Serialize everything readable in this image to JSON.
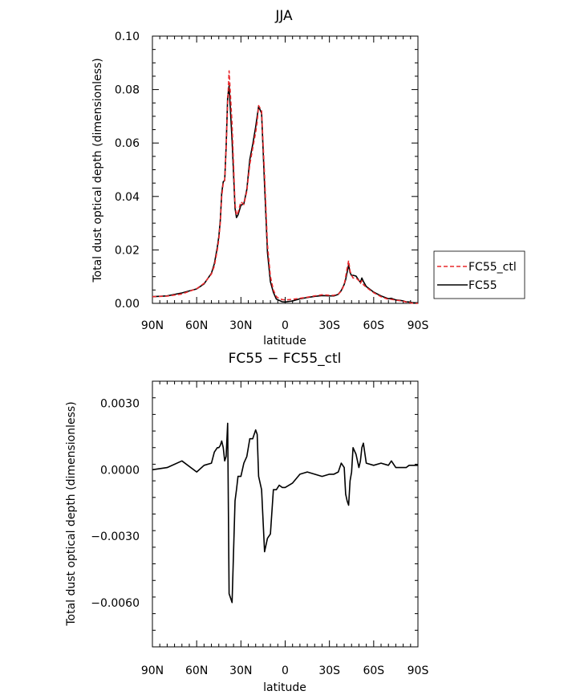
{
  "chart_data": [
    {
      "type": "line",
      "title": "JJA",
      "xlabel": "latitude",
      "ylabel": "Total dust optical depth (dimensionless)",
      "xlim": [
        -90,
        90
      ],
      "ylim": [
        0,
        0.1
      ],
      "x_ticks": [
        -90,
        -60,
        -30,
        0,
        30,
        60,
        90
      ],
      "x_tick_labels": [
        "90N",
        "60N",
        "30N",
        "0",
        "30S",
        "60S",
        "90S"
      ],
      "y_ticks": [
        0,
        0.02,
        0.04,
        0.06,
        0.08,
        0.1
      ],
      "y_tick_labels": [
        "0.00",
        "0.02",
        "0.04",
        "0.06",
        "0.08",
        "0.10"
      ],
      "legend": {
        "placement": "outside-right",
        "entries": [
          "FC55_ctl",
          "FC55"
        ]
      },
      "series": [
        {
          "name": "FC55_ctl",
          "color": "#e8282c",
          "dash": "dashed",
          "x": [
            -90,
            -80,
            -70,
            -60,
            -55,
            -50,
            -48,
            -46,
            -45,
            -44,
            -43,
            -42,
            -41,
            -40,
            -39,
            -38,
            -36,
            -34,
            -33,
            -32,
            -30,
            -28,
            -26,
            -24,
            -22,
            -20,
            -19,
            -18,
            -16,
            -14,
            -12,
            -10,
            -8,
            -6,
            -4,
            -2,
            0,
            5,
            10,
            15,
            20,
            25,
            30,
            33,
            36,
            38,
            40,
            41,
            42,
            43,
            44,
            45,
            46,
            48,
            50,
            51,
            52,
            53,
            55,
            60,
            65,
            70,
            72,
            75,
            78,
            80,
            82,
            84,
            86,
            88,
            90
          ],
          "values": [
            0.0025,
            0.0027,
            0.0035,
            0.0055,
            0.0075,
            0.011,
            0.014,
            0.02,
            0.024,
            0.03,
            0.04,
            0.045,
            0.046,
            0.058,
            0.075,
            0.087,
            0.067,
            0.037,
            0.033,
            0.034,
            0.038,
            0.037,
            0.042,
            0.052,
            0.058,
            0.064,
            0.068,
            0.074,
            0.072,
            0.048,
            0.022,
            0.01,
            0.005,
            0.0025,
            0.0018,
            0.0014,
            0.0013,
            0.0015,
            0.0019,
            0.0023,
            0.0028,
            0.0032,
            0.003,
            0.003,
            0.0035,
            0.0045,
            0.007,
            0.01,
            0.013,
            0.016,
            0.012,
            0.0105,
            0.0095,
            0.0095,
            0.0085,
            0.0075,
            0.0085,
            0.007,
            0.006,
            0.004,
            0.0025,
            0.0015,
            0.0015,
            0.0012,
            0.001,
            0.0008,
            0.0005,
            0.0003,
            0.0001,
            0.0,
            0.0
          ]
        },
        {
          "name": "FC55",
          "color": "#000000",
          "dash": "solid",
          "x": [
            -90,
            -80,
            -70,
            -60,
            -55,
            -50,
            -48,
            -46,
            -45,
            -44,
            -43,
            -42,
            -41,
            -40,
            -39,
            -38,
            -36,
            -34,
            -33,
            -32,
            -30,
            -28,
            -26,
            -24,
            -22,
            -20,
            -19,
            -18,
            -16,
            -14,
            -12,
            -10,
            -8,
            -6,
            -4,
            -2,
            0,
            5,
            10,
            15,
            20,
            25,
            30,
            33,
            36,
            38,
            40,
            41,
            42,
            43,
            44,
            45,
            46,
            48,
            50,
            51,
            52,
            53,
            55,
            60,
            65,
            70,
            72,
            75,
            78,
            80,
            82,
            84,
            86,
            88,
            90
          ],
          "values": [
            0.0025,
            0.0028,
            0.0039,
            0.0054,
            0.0073,
            0.0113,
            0.0148,
            0.021,
            0.025,
            0.031,
            0.0413,
            0.0455,
            0.046,
            0.0586,
            0.0771,
            0.0814,
            0.061,
            0.0356,
            0.0321,
            0.0331,
            0.0367,
            0.0373,
            0.0426,
            0.0538,
            0.0594,
            0.066,
            0.07,
            0.0737,
            0.0711,
            0.0443,
            0.0191,
            0.0081,
            0.0041,
            0.0016,
            0.0011,
            0.0006,
            0.0005,
            0.0009,
            0.0017,
            0.0022,
            0.0026,
            0.0029,
            0.0028,
            0.0028,
            0.0034,
            0.0048,
            0.0071,
            0.0089,
            0.0116,
            0.0144,
            0.0115,
            0.0104,
            0.0105,
            0.0102,
            0.0086,
            0.0079,
            0.0095,
            0.0082,
            0.0063,
            0.0042,
            0.0028,
            0.0017,
            0.0019,
            0.0013,
            0.0011,
            0.0009,
            0.0006,
            0.0005,
            0.0003,
            0.0002,
            0.0002
          ]
        }
      ]
    },
    {
      "type": "line",
      "title": "FC55 − FC55_ctl",
      "xlabel": "latitude",
      "ylabel": "Total dust optical depth (dimensionless)",
      "xlim": [
        -90,
        90
      ],
      "ylim": [
        -0.008,
        0.004
      ],
      "x_ticks": [
        -90,
        -60,
        -30,
        0,
        30,
        60,
        90
      ],
      "x_tick_labels": [
        "90N",
        "60N",
        "30N",
        "0",
        "30S",
        "60S",
        "90S"
      ],
      "y_ticks": [
        -0.006,
        -0.003,
        0,
        0.003
      ],
      "y_tick_labels": [
        "−0.0060",
        "−0.0030",
        "0.0000",
        "0.0030"
      ],
      "series": [
        {
          "color": "#000000",
          "dash": "solid",
          "x": [
            -90,
            -80,
            -70,
            -60,
            -55,
            -50,
            -48,
            -46,
            -45,
            -44,
            -43,
            -42,
            -41,
            -40,
            -39,
            -38,
            -36,
            -34,
            -33,
            -32,
            -30,
            -28,
            -26,
            -24,
            -22,
            -20,
            -19,
            -18,
            -16,
            -14,
            -12,
            -10,
            -8,
            -6,
            -4,
            -2,
            0,
            5,
            10,
            15,
            20,
            25,
            30,
            33,
            36,
            38,
            40,
            41,
            42,
            43,
            44,
            45,
            46,
            48,
            50,
            51,
            52,
            53,
            55,
            60,
            65,
            70,
            72,
            75,
            78,
            80,
            82,
            84,
            86,
            88,
            90
          ],
          "values": [
            0.0,
            0.0001,
            0.0004,
            -0.0001,
            0.0002,
            0.0003,
            0.0008,
            0.001,
            0.001,
            0.0011,
            0.0013,
            0.001,
            0.0004,
            0.0006,
            0.0021,
            -0.0056,
            -0.006,
            -0.0014,
            -0.0009,
            -0.0003,
            -0.0003,
            0.0003,
            0.0006,
            0.0014,
            0.0014,
            0.0018,
            0.0016,
            -0.0003,
            -0.0009,
            -0.0037,
            -0.0031,
            -0.0029,
            -0.0009,
            -0.0009,
            -0.0007,
            -0.0008,
            -0.0008,
            -0.0006,
            -0.0002,
            -0.0001,
            -0.0002,
            -0.0003,
            -0.0002,
            -0.0002,
            -0.0001,
            0.0003,
            0.0001,
            -0.0011,
            -0.0014,
            -0.0016,
            -0.0005,
            -0.0001,
            0.001,
            0.0007,
            0.0001,
            0.0004,
            0.001,
            0.0012,
            0.0003,
            0.0002,
            0.0003,
            0.0002,
            0.0004,
            0.0001,
            0.0001,
            0.0001,
            0.0001,
            0.0002,
            0.0002,
            0.0002,
            0.0002
          ]
        }
      ]
    }
  ]
}
